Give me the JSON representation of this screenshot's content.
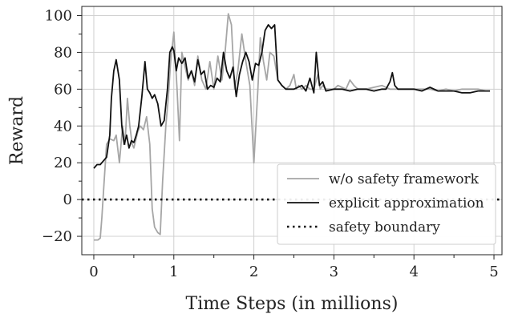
{
  "chart_data": {
    "type": "line",
    "title": "",
    "xlabel": "Time Steps (in millions)",
    "ylabel": "Reward",
    "xlim": [
      -0.15,
      5.1
    ],
    "ylim": [
      -30,
      105
    ],
    "xticks": [
      0,
      1,
      2,
      3,
      4,
      5
    ],
    "xtick_labels": [
      "0",
      "1",
      "2",
      "3",
      "4",
      "5"
    ],
    "xminor": [
      0.5,
      1.5,
      2.5,
      3.5,
      4.5
    ],
    "yticks": [
      -20,
      0,
      20,
      40,
      60,
      80,
      100
    ],
    "ytick_labels": [
      "−20",
      "0",
      "20",
      "40",
      "60",
      "80",
      "100"
    ],
    "yminor": [
      -10,
      10,
      30,
      50,
      70,
      90
    ],
    "grid": true,
    "legend_position": "lower-right",
    "series": [
      {
        "name": "w/o safety framework",
        "color": "#a6a6a6",
        "style": "solid",
        "x": [
          0,
          0.05,
          0.08,
          0.1,
          0.13,
          0.16,
          0.2,
          0.25,
          0.28,
          0.32,
          0.36,
          0.39,
          0.42,
          0.45,
          0.48,
          0.5,
          0.55,
          0.58,
          0.62,
          0.66,
          0.7,
          0.73,
          0.76,
          0.8,
          0.83,
          0.86,
          0.9,
          0.93,
          0.96,
          1.0,
          1.04,
          1.07,
          1.1,
          1.14,
          1.18,
          1.22,
          1.26,
          1.3,
          1.35,
          1.4,
          1.45,
          1.5,
          1.55,
          1.6,
          1.64,
          1.68,
          1.72,
          1.76,
          1.8,
          1.85,
          1.9,
          1.95,
          2.0,
          2.05,
          2.08,
          2.12,
          2.16,
          2.2,
          2.25,
          2.3,
          2.35,
          2.4,
          2.45,
          2.5,
          2.53,
          2.56,
          2.6,
          2.65,
          2.7,
          2.75,
          2.8,
          2.83,
          2.86,
          2.9,
          2.95,
          3.0,
          3.05,
          3.1,
          3.15,
          3.2,
          3.25,
          3.3,
          3.4,
          3.5,
          3.6,
          3.7,
          3.8,
          3.9,
          4.0,
          4.1,
          4.2,
          4.3,
          4.4,
          4.5,
          4.6,
          4.7,
          4.8,
          4.9,
          4.95
        ],
        "y": [
          -22,
          -22,
          -21,
          -10,
          10,
          30,
          33,
          32,
          35,
          20,
          40,
          30,
          55,
          40,
          30,
          28,
          37,
          40,
          38,
          45,
          30,
          -5,
          -15,
          -18,
          -19,
          10,
          40,
          55,
          75,
          91,
          60,
          32,
          80,
          72,
          65,
          70,
          62,
          78,
          65,
          60,
          75,
          60,
          78,
          65,
          80,
          101,
          95,
          60,
          70,
          90,
          75,
          62,
          20,
          60,
          88,
          75,
          65,
          80,
          78,
          65,
          62,
          60,
          62,
          68,
          60,
          62,
          60,
          62,
          60,
          60,
          68,
          60,
          62,
          60,
          60,
          60,
          62,
          61,
          60,
          65,
          62,
          60,
          60,
          61,
          62,
          60,
          60,
          60,
          60,
          60,
          60,
          59,
          60,
          59,
          60,
          60,
          60,
          59,
          59
        ]
      },
      {
        "name": "explicit approximation",
        "color": "#111111",
        "style": "solid",
        "x": [
          0,
          0.04,
          0.08,
          0.12,
          0.16,
          0.2,
          0.22,
          0.25,
          0.28,
          0.32,
          0.35,
          0.38,
          0.41,
          0.44,
          0.47,
          0.5,
          0.53,
          0.56,
          0.6,
          0.64,
          0.67,
          0.7,
          0.73,
          0.76,
          0.8,
          0.84,
          0.88,
          0.92,
          0.95,
          0.98,
          1.0,
          1.03,
          1.06,
          1.1,
          1.14,
          1.18,
          1.22,
          1.26,
          1.3,
          1.34,
          1.38,
          1.42,
          1.46,
          1.5,
          1.54,
          1.58,
          1.62,
          1.66,
          1.7,
          1.74,
          1.78,
          1.82,
          1.86,
          1.9,
          1.94,
          1.98,
          2.02,
          2.06,
          2.1,
          2.14,
          2.18,
          2.22,
          2.26,
          2.3,
          2.35,
          2.4,
          2.5,
          2.6,
          2.65,
          2.7,
          2.75,
          2.78,
          2.82,
          2.86,
          2.9,
          3.0,
          3.1,
          3.2,
          3.3,
          3.4,
          3.5,
          3.6,
          3.65,
          3.7,
          3.73,
          3.76,
          3.8,
          3.9,
          4.0,
          4.1,
          4.2,
          4.3,
          4.4,
          4.5,
          4.6,
          4.7,
          4.8,
          4.9,
          4.95
        ],
        "y": [
          17,
          19,
          19,
          21,
          23,
          35,
          55,
          70,
          76,
          65,
          40,
          30,
          35,
          28,
          32,
          31,
          35,
          40,
          56,
          75,
          60,
          58,
          55,
          57,
          52,
          40,
          43,
          60,
          80,
          83,
          81,
          70,
          77,
          74,
          77,
          66,
          70,
          64,
          76,
          68,
          70,
          60,
          62,
          61,
          66,
          64,
          80,
          70,
          66,
          72,
          56,
          68,
          75,
          80,
          75,
          65,
          74,
          73,
          80,
          92,
          95,
          93,
          95,
          65,
          62,
          60,
          60,
          62,
          59,
          66,
          58,
          80,
          62,
          64,
          59,
          60,
          60,
          59,
          60,
          60,
          59,
          60,
          60,
          64,
          69,
          62,
          60,
          60,
          60,
          59,
          61,
          59,
          59,
          59,
          58,
          58,
          59,
          59,
          59
        ]
      },
      {
        "name": "safety boundary",
        "color": "#111111",
        "style": "dotted",
        "x": [
          -0.15,
          5.1
        ],
        "y": [
          0,
          0
        ]
      }
    ]
  }
}
